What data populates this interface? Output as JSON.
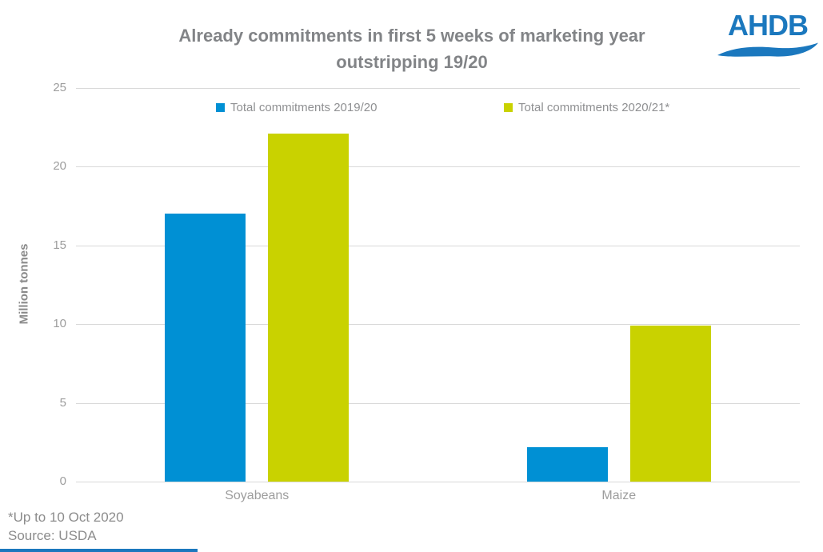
{
  "header": {
    "title_lines": [
      "Already commitments in first 5 weeks of marketing year",
      "outstripping 19/20"
    ],
    "logo_text": "AHDB"
  },
  "footer": {
    "note": "*Up to 10 Oct 2020",
    "source": "Source: USDA"
  },
  "colors": {
    "series_2019_20": "#0090d4",
    "series_2020_21": "#c9d200",
    "brand_blue": "#1b78be",
    "gridline": "#d9d9d9",
    "title_gray": "#828487",
    "axis_gray": "#9d9d9d"
  },
  "chart_data": {
    "type": "bar",
    "title": "Already commitments in first 5 weeks of marketing year outstripping 19/20",
    "categories": [
      "Soyabeans",
      "Maize"
    ],
    "series": [
      {
        "name": "Total commitments 2019/20",
        "color": "#0090d4",
        "values": [
          17.0,
          2.2
        ]
      },
      {
        "name": "Total commitments 2020/21*",
        "color": "#c9d200",
        "values": [
          22.1,
          9.9
        ]
      }
    ],
    "xlabel": "",
    "ylabel": "Million tonnes",
    "ylim": [
      0,
      25
    ],
    "ytick_step": 5,
    "grid": true,
    "legend_position": "top"
  }
}
